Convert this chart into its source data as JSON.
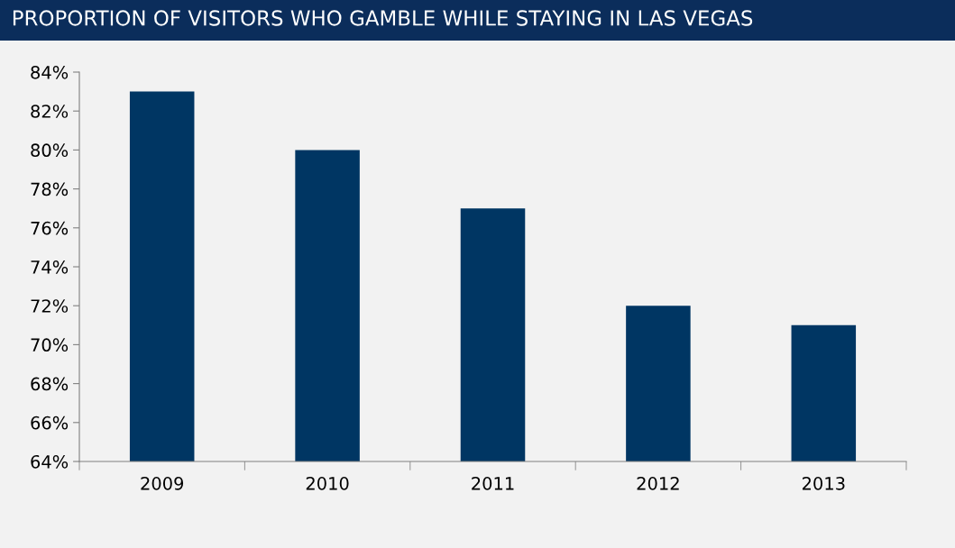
{
  "chart_data": {
    "type": "bar",
    "title": "PROPORTION OF VISITORS WHO GAMBLE WHILE STAYING IN LAS VEGAS",
    "categories": [
      "2009",
      "2010",
      "2011",
      "2012",
      "2013"
    ],
    "values": [
      83,
      80,
      77,
      72,
      71
    ],
    "color": "#003663",
    "ylim": [
      64,
      84
    ],
    "yticks": [
      {
        "value": 64,
        "label": "64%"
      },
      {
        "value": 66,
        "label": "66%"
      },
      {
        "value": 68,
        "label": "68%"
      },
      {
        "value": 70,
        "label": "70%"
      },
      {
        "value": 72,
        "label": "72%"
      },
      {
        "value": 74,
        "label": "74%"
      },
      {
        "value": 76,
        "label": "76%"
      },
      {
        "value": 78,
        "label": "78%"
      },
      {
        "value": 80,
        "label": "80%"
      },
      {
        "value": 82,
        "label": "82%"
      },
      {
        "value": 84,
        "label": "84%"
      }
    ],
    "grid": false,
    "legend": false
  }
}
